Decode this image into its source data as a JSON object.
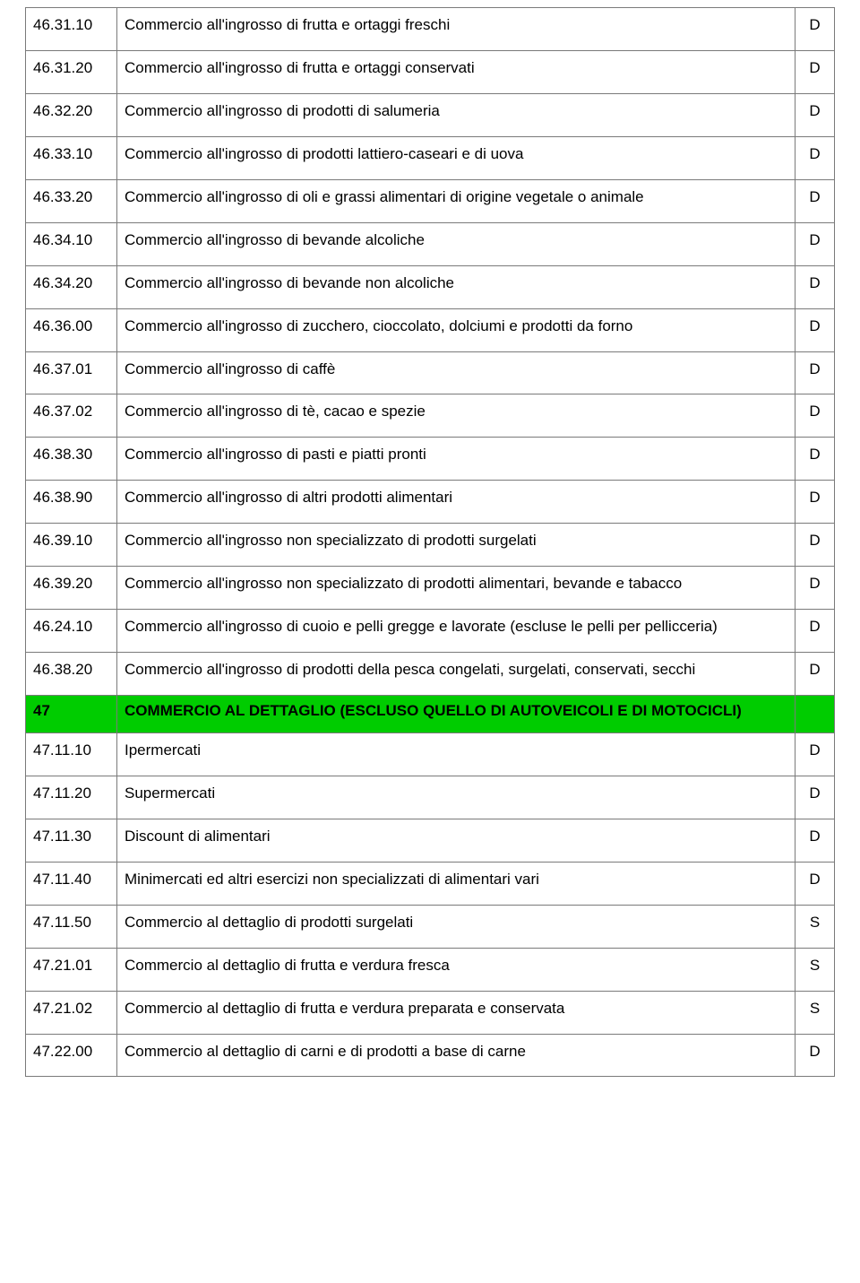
{
  "table": {
    "colors": {
      "section_bg": "#00cc00",
      "border": "#7a7a7a",
      "text": "#000000",
      "background": "#ffffff"
    },
    "font": {
      "family": "Verdana",
      "base_size_pt": 13
    },
    "columns": [
      "code",
      "description",
      "flag"
    ],
    "rows": [
      {
        "type": "row",
        "code": "46.31.10",
        "desc": "Commercio all'ingrosso di frutta e ortaggi freschi",
        "flag": "D"
      },
      {
        "type": "row",
        "code": "46.31.20",
        "desc": "Commercio all'ingrosso di frutta e ortaggi conservati",
        "flag": "D"
      },
      {
        "type": "row",
        "code": "46.32.20",
        "desc": "Commercio all'ingrosso di prodotti di salumeria",
        "flag": "D"
      },
      {
        "type": "row",
        "code": "46.33.10",
        "desc": "Commercio all'ingrosso di prodotti lattiero-caseari e di uova",
        "flag": "D"
      },
      {
        "type": "row",
        "code": "46.33.20",
        "desc": "Commercio all'ingrosso di oli e grassi alimentari di origine vegetale o animale",
        "flag": "D"
      },
      {
        "type": "row",
        "code": "46.34.10",
        "desc": "Commercio all'ingrosso di bevande alcoliche",
        "flag": "D"
      },
      {
        "type": "row",
        "code": "46.34.20",
        "desc": "Commercio all'ingrosso di bevande non alcoliche",
        "flag": "D"
      },
      {
        "type": "row",
        "code": "46.36.00",
        "desc": "Commercio all'ingrosso di zucchero, cioccolato, dolciumi e prodotti da forno",
        "flag": "D"
      },
      {
        "type": "row",
        "code": "46.37.01",
        "desc": "Commercio all'ingrosso di caffè",
        "flag": "D"
      },
      {
        "type": "row",
        "code": "46.37.02",
        "desc": "Commercio all'ingrosso di tè, cacao e spezie",
        "flag": "D"
      },
      {
        "type": "row",
        "code": "46.38.30",
        "desc": "Commercio all'ingrosso di pasti e piatti pronti",
        "flag": "D"
      },
      {
        "type": "row",
        "code": "46.38.90",
        "desc": "Commercio all'ingrosso di altri prodotti alimentari",
        "flag": "D"
      },
      {
        "type": "row",
        "code": "46.39.10",
        "desc": "Commercio all'ingrosso non specializzato di prodotti surgelati",
        "flag": "D"
      },
      {
        "type": "row",
        "code": "46.39.20",
        "desc": "Commercio all'ingrosso non specializzato di prodotti alimentari, bevande e tabacco",
        "flag": "D"
      },
      {
        "type": "row",
        "code": "46.24.10",
        "desc": "Commercio all'ingrosso di cuoio e pelli gregge e lavorate (escluse le pelli per pellicceria)",
        "flag": "D"
      },
      {
        "type": "row",
        "code": "46.38.20",
        "desc": "Commercio all'ingrosso di prodotti della pesca congelati, surgelati, conservati, secchi",
        "flag": "D"
      },
      {
        "type": "section",
        "code": "47",
        "desc": "COMMERCIO AL DETTAGLIO (ESCLUSO QUELLO DI AUTOVEICOLI E DI MOTOCICLI)",
        "flag": ""
      },
      {
        "type": "row",
        "code": "47.11.10",
        "desc": "Ipermercati",
        "flag": "D"
      },
      {
        "type": "row",
        "code": "47.11.20",
        "desc": "Supermercati",
        "flag": "D"
      },
      {
        "type": "row",
        "code": "47.11.30",
        "desc": "Discount di alimentari",
        "flag": "D"
      },
      {
        "type": "row",
        "code": "47.11.40",
        "desc": "Minimercati ed altri esercizi non specializzati di alimentari vari",
        "flag": "D"
      },
      {
        "type": "row",
        "code": "47.11.50",
        "desc": "Commercio al dettaglio di prodotti surgelati",
        "flag": "S"
      },
      {
        "type": "row",
        "code": "47.21.01",
        "desc": "Commercio al dettaglio di frutta e verdura fresca",
        "flag": "S"
      },
      {
        "type": "row",
        "code": "47.21.02",
        "desc": "Commercio al dettaglio di frutta e verdura preparata e conservata",
        "flag": "S"
      },
      {
        "type": "row",
        "code": "47.22.00",
        "desc": "Commercio al dettaglio di carni e di prodotti a base di carne",
        "flag": "D"
      }
    ]
  }
}
